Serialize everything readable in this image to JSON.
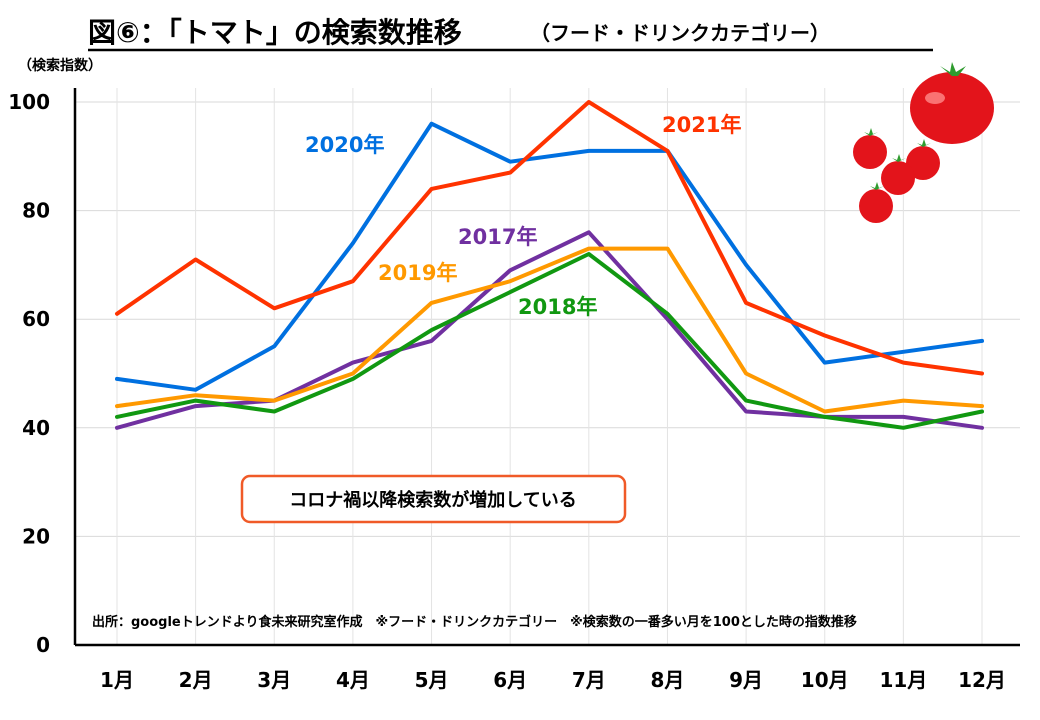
{
  "chart_data": {
    "type": "line",
    "title": "図⑥：「トマト」の検索数推移",
    "subtitle": "（フード・ドリンクカテゴリー）",
    "ylabel": "（検索指数）",
    "xlabel": "",
    "ylim": [
      0,
      100
    ],
    "yticks": [
      0,
      20,
      40,
      60,
      80,
      100
    ],
    "grid": true,
    "categories": [
      "1月",
      "2月",
      "3月",
      "4月",
      "5月",
      "6月",
      "7月",
      "8月",
      "9月",
      "10月",
      "11月",
      "12月"
    ],
    "series": [
      {
        "name": "2017年",
        "color": "#7030a0",
        "values": [
          40,
          44,
          45,
          52,
          56,
          69,
          76,
          60,
          43,
          42,
          42,
          40
        ]
      },
      {
        "name": "2018年",
        "color": "#119811",
        "values": [
          42,
          45,
          43,
          49,
          58,
          65,
          72,
          61,
          45,
          42,
          40,
          43
        ]
      },
      {
        "name": "2019年",
        "color": "#ff9900",
        "values": [
          44,
          46,
          45,
          50,
          63,
          67,
          73,
          73,
          50,
          43,
          45,
          44
        ]
      },
      {
        "name": "2020年",
        "color": "#0070e0",
        "values": [
          49,
          47,
          55,
          74,
          96,
          89,
          91,
          91,
          70,
          52,
          54,
          56
        ]
      },
      {
        "name": "2021年",
        "color": "#ff3300",
        "values": [
          61,
          71,
          62,
          67,
          84,
          87,
          100,
          91,
          63,
          57,
          52,
          50
        ]
      }
    ],
    "annotations": {
      "callout": "コロナ禍以降検索数が増加している",
      "source": "出所：googleトレンドより食未来研究室作成　※フード・ドリンクカテゴリー　※検索数の一番多い月を100とした時の指数推移"
    }
  },
  "decoration": {
    "image": "tomatoes-illustration"
  }
}
